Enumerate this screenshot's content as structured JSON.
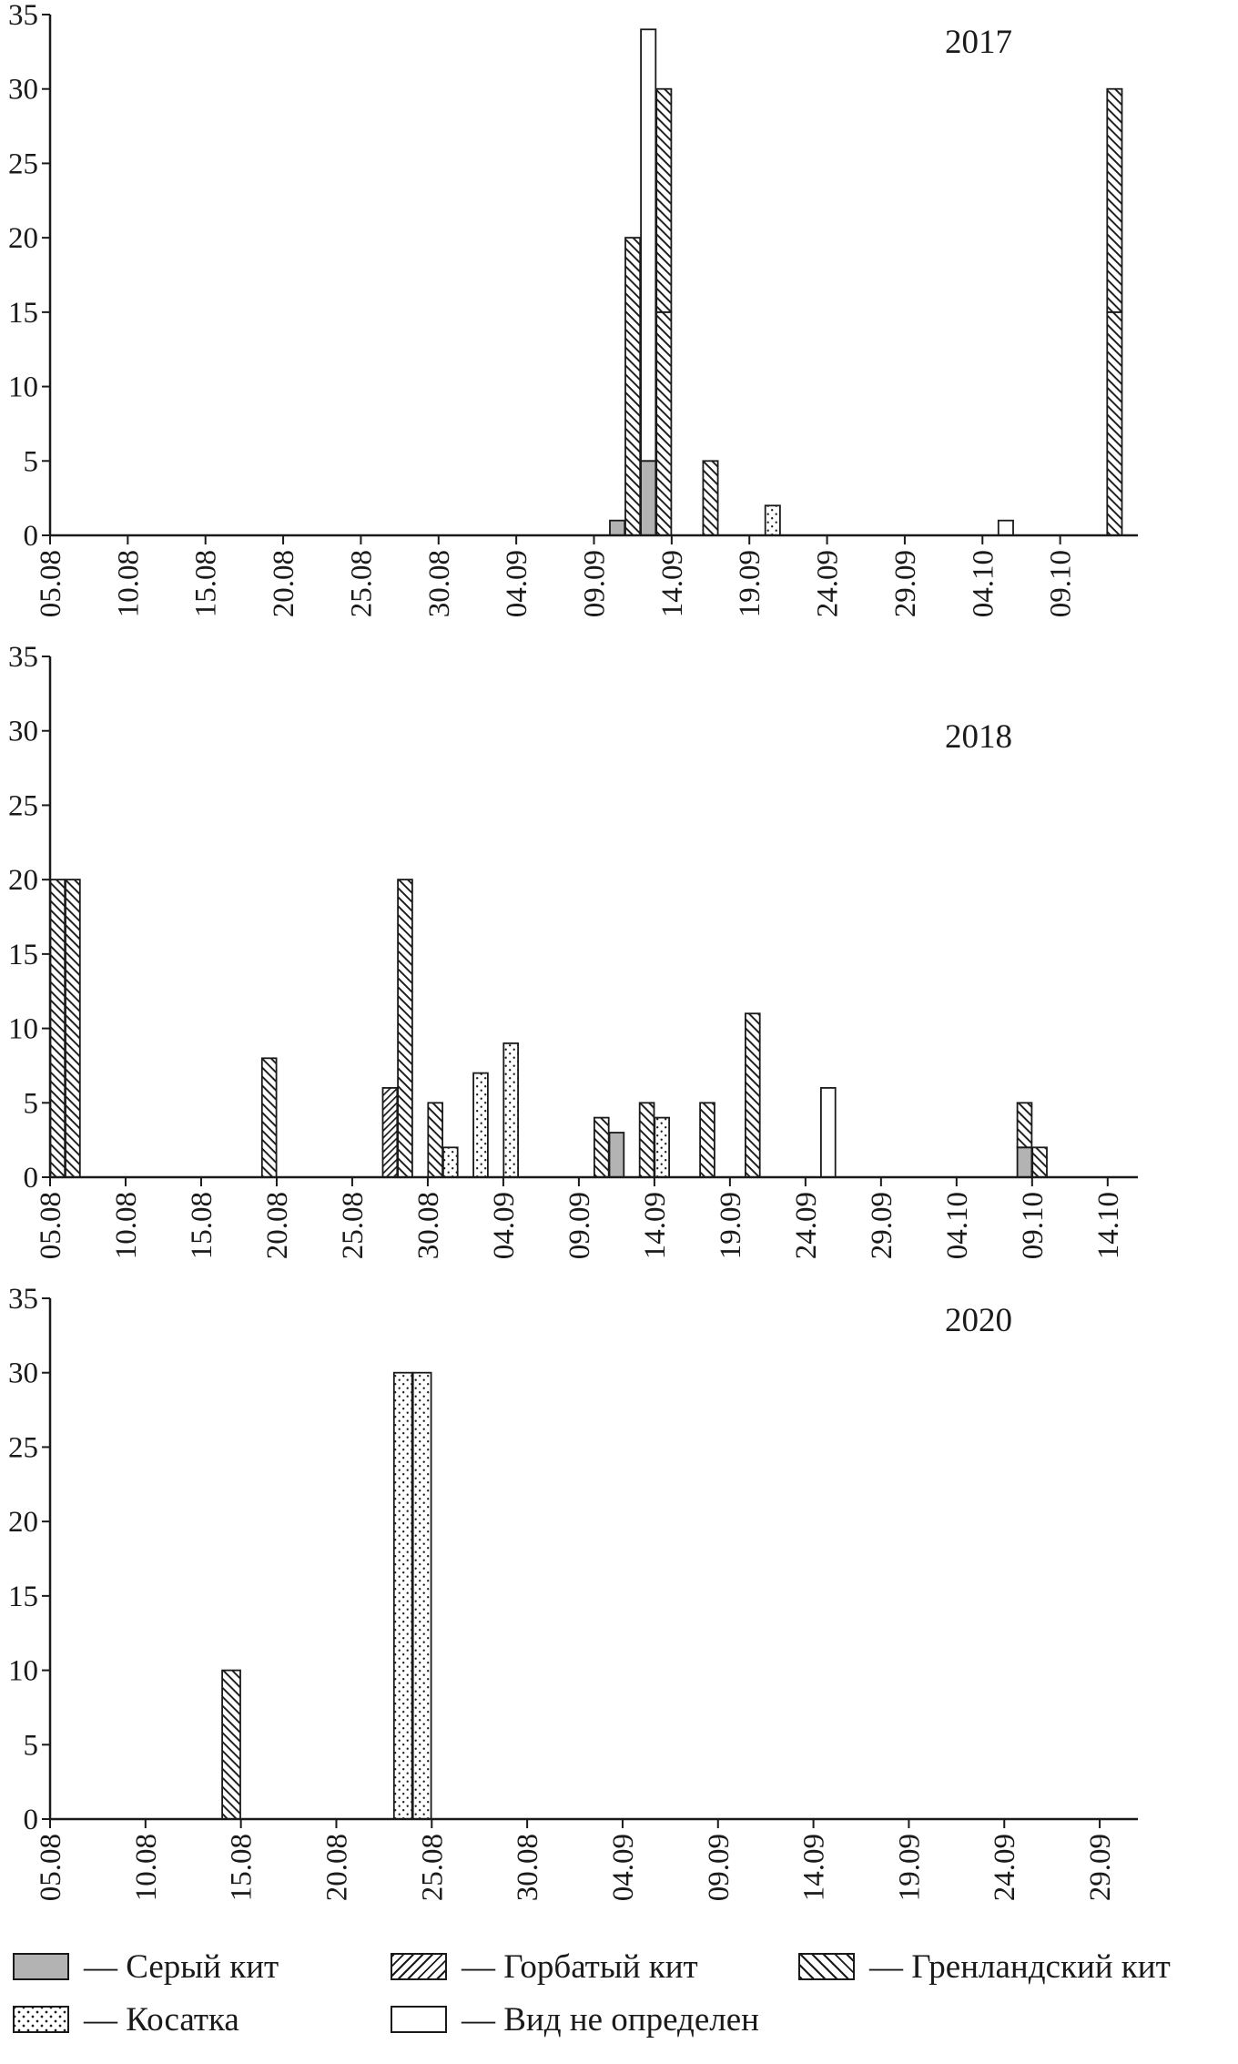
{
  "figure": {
    "bg": "#ffffff",
    "ink": "#1a1a1a",
    "gray_fill": "#b3b3b3"
  },
  "species": {
    "gray": {
      "label": "Серый кит",
      "pattern": "solid-gray",
      "color": "#b3b3b3"
    },
    "humpback": {
      "label": "Горбатый кит",
      "pattern": "diagonal-forward-hatch"
    },
    "bowhead": {
      "label": "Гренландский кит",
      "pattern": "diagonal-back-hatch"
    },
    "orca": {
      "label": "Косатка",
      "pattern": "dots"
    },
    "undetermined": {
      "label": "Вид не определен",
      "pattern": "white"
    }
  },
  "legend": {
    "items": [
      {
        "species": "gray",
        "label": "— Серый кит"
      },
      {
        "species": "humpback",
        "label": "— Горбатый кит"
      },
      {
        "species": "bowhead",
        "label": "— Гренландский кит"
      },
      {
        "species": "orca",
        "label": "— Косатка"
      },
      {
        "species": "undetermined",
        "label": "— Вид не определен"
      }
    ]
  },
  "chart_data": [
    {
      "type": "bar",
      "year": "2017",
      "ylim": [
        0,
        35
      ],
      "yticks": [
        0,
        5,
        10,
        15,
        20,
        25,
        30,
        35
      ],
      "xtick_step_days": 5,
      "axis_end_day": 70,
      "xtick_labels": [
        "05.08",
        "10.08",
        "15.08",
        "20.08",
        "25.08",
        "30.08",
        "04.09",
        "09.09",
        "14.09",
        "19.09",
        "24.09",
        "29.09",
        "04.10",
        "09.10"
      ],
      "bars": [
        {
          "day": 36,
          "date": "10.09",
          "segments": [
            {
              "species": "gray",
              "value": 1
            }
          ]
        },
        {
          "day": 37,
          "date": "11.09",
          "segments": [
            {
              "species": "bowhead",
              "value": 20
            }
          ]
        },
        {
          "day": 38,
          "date": "12.09",
          "segments": [
            {
              "species": "gray",
              "value": 5
            },
            {
              "species": "undetermined",
              "value": 29
            }
          ]
        },
        {
          "day": 39,
          "date": "13.09",
          "segments": [
            {
              "species": "bowhead",
              "value": 15
            },
            {
              "species": "bowhead",
              "value": 15
            }
          ]
        },
        {
          "day": 42,
          "date": "16.09",
          "segments": [
            {
              "species": "bowhead",
              "value": 5
            }
          ]
        },
        {
          "day": 46,
          "date": "20.09",
          "segments": [
            {
              "species": "orca",
              "value": 2
            }
          ]
        },
        {
          "day": 61,
          "date": "05.10",
          "segments": [
            {
              "species": "undetermined",
              "value": 1
            }
          ]
        },
        {
          "day": 68,
          "date": "12.10",
          "segments": [
            {
              "species": "bowhead",
              "value": 15
            },
            {
              "species": "bowhead",
              "value": 15
            }
          ]
        }
      ]
    },
    {
      "type": "bar",
      "year": "2018",
      "ylim": [
        0,
        35
      ],
      "yticks": [
        0,
        5,
        10,
        15,
        20,
        25,
        30,
        35
      ],
      "xtick_step_days": 5,
      "axis_end_day": 72,
      "xtick_labels": [
        "05.08",
        "10.08",
        "15.08",
        "20.08",
        "25.08",
        "30.08",
        "04.09",
        "09.09",
        "14.09",
        "19.09",
        "24.09",
        "29.09",
        "04.10",
        "09.10",
        "14.10"
      ],
      "bars": [
        {
          "day": 0,
          "date": "05.08",
          "segments": [
            {
              "species": "bowhead",
              "value": 20
            }
          ]
        },
        {
          "day": 1,
          "date": "06.08",
          "segments": [
            {
              "species": "bowhead",
              "value": 20
            }
          ]
        },
        {
          "day": 14,
          "date": "19.08",
          "segments": [
            {
              "species": "bowhead",
              "value": 8
            }
          ]
        },
        {
          "day": 22,
          "date": "27.08",
          "segments": [
            {
              "species": "humpback",
              "value": 6
            }
          ]
        },
        {
          "day": 23,
          "date": "28.08",
          "segments": [
            {
              "species": "bowhead",
              "value": 20
            }
          ]
        },
        {
          "day": 25,
          "date": "30.08",
          "segments": [
            {
              "species": "bowhead",
              "value": 5
            }
          ]
        },
        {
          "day": 26,
          "date": "31.08",
          "segments": [
            {
              "species": "orca",
              "value": 2
            }
          ]
        },
        {
          "day": 28,
          "date": "02.09",
          "segments": [
            {
              "species": "orca",
              "value": 7
            }
          ]
        },
        {
          "day": 30,
          "date": "04.09",
          "segments": [
            {
              "species": "orca",
              "value": 9
            }
          ]
        },
        {
          "day": 36,
          "date": "10.09",
          "segments": [
            {
              "species": "bowhead",
              "value": 4
            }
          ]
        },
        {
          "day": 37,
          "date": "11.09",
          "segments": [
            {
              "species": "gray",
              "value": 3
            }
          ]
        },
        {
          "day": 39,
          "date": "13.09",
          "segments": [
            {
              "species": "bowhead",
              "value": 5
            }
          ]
        },
        {
          "day": 40,
          "date": "14.09",
          "segments": [
            {
              "species": "orca",
              "value": 4
            }
          ]
        },
        {
          "day": 43,
          "date": "17.09",
          "segments": [
            {
              "species": "bowhead",
              "value": 5
            }
          ]
        },
        {
          "day": 46,
          "date": "20.09",
          "segments": [
            {
              "species": "bowhead",
              "value": 11
            }
          ]
        },
        {
          "day": 51,
          "date": "25.09",
          "segments": [
            {
              "species": "undetermined",
              "value": 6
            }
          ]
        },
        {
          "day": 64,
          "date": "08.10",
          "segments": [
            {
              "species": "gray",
              "value": 2
            },
            {
              "species": "bowhead",
              "value": 3
            }
          ]
        },
        {
          "day": 65,
          "date": "09.10",
          "segments": [
            {
              "species": "bowhead",
              "value": 2
            }
          ]
        }
      ]
    },
    {
      "type": "bar",
      "year": "2020",
      "ylim": [
        0,
        35
      ],
      "yticks": [
        0,
        5,
        10,
        15,
        20,
        25,
        30,
        35
      ],
      "xtick_step_days": 5,
      "axis_end_day": 57,
      "xtick_labels": [
        "05.08",
        "10.08",
        "15.08",
        "20.08",
        "25.08",
        "30.08",
        "04.09",
        "09.09",
        "14.09",
        "19.09",
        "24.09",
        "29.09"
      ],
      "bars": [
        {
          "day": 9,
          "date": "14.08",
          "segments": [
            {
              "species": "bowhead",
              "value": 10
            }
          ]
        },
        {
          "day": 18,
          "date": "23.08",
          "segments": [
            {
              "species": "orca",
              "value": 30
            }
          ]
        },
        {
          "day": 19,
          "date": "24.08",
          "segments": [
            {
              "species": "orca",
              "value": 30
            }
          ]
        }
      ]
    }
  ]
}
